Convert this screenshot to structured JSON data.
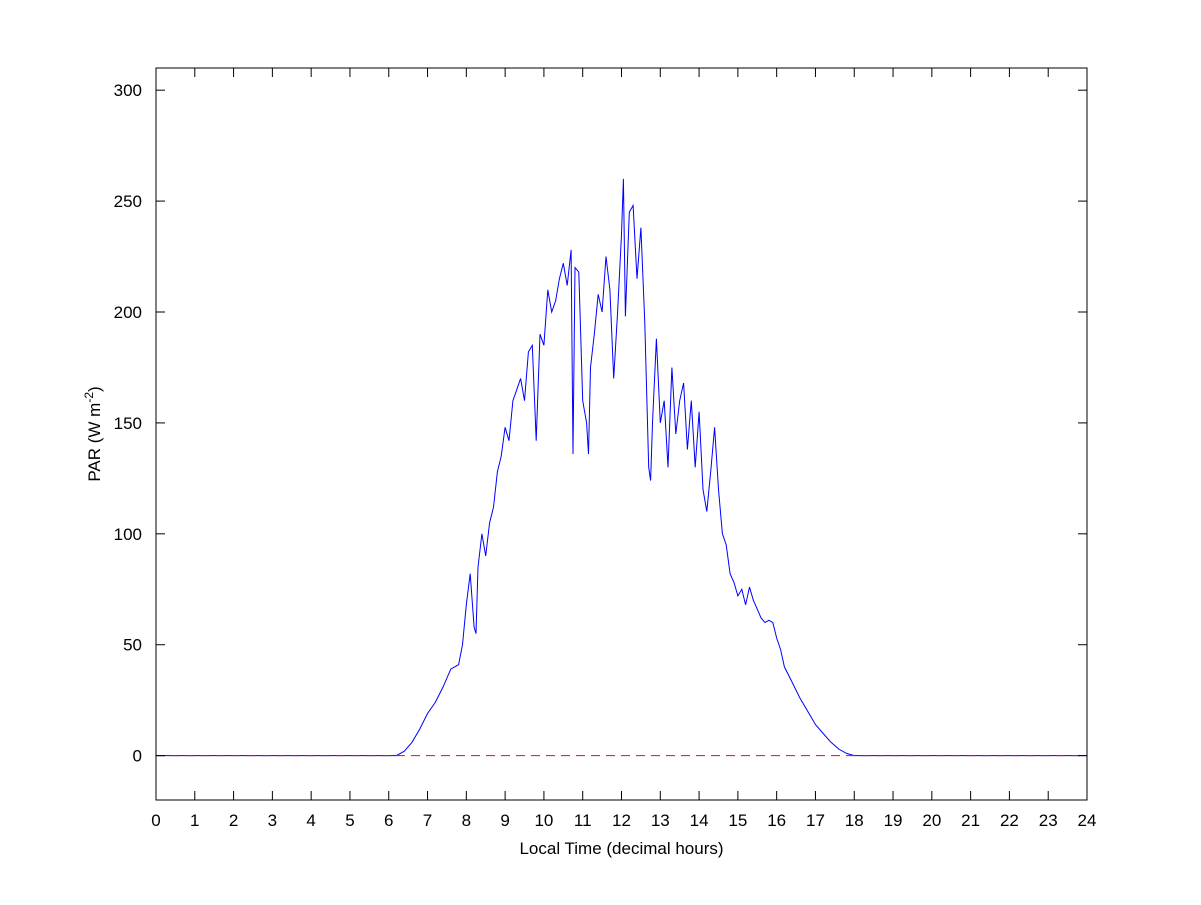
{
  "chart_data": {
    "type": "line",
    "title": "",
    "xlabel": "Local Time (decimal hours)",
    "ylabel_main": "PAR (W m",
    "ylabel_sup": "-2",
    "ylabel_close": ")",
    "xlim": [
      0,
      24
    ],
    "ylim": [
      -20,
      310
    ],
    "xticks": [
      0,
      1,
      2,
      3,
      4,
      5,
      6,
      7,
      8,
      9,
      10,
      11,
      12,
      13,
      14,
      15,
      16,
      17,
      18,
      19,
      20,
      21,
      22,
      23,
      24
    ],
    "yticks": [
      0,
      50,
      100,
      150,
      200,
      250,
      300
    ],
    "grid": false,
    "colors": {
      "series": "#0000ff",
      "reference": "#ff0000"
    },
    "series": [
      {
        "style": "solid",
        "x": [
          0,
          6.2,
          6.4,
          6.6,
          6.8,
          7.0,
          7.2,
          7.4,
          7.6,
          7.8,
          7.9,
          8.0,
          8.1,
          8.2,
          8.25,
          8.3,
          8.4,
          8.5,
          8.6,
          8.7,
          8.8,
          8.9,
          9.0,
          9.1,
          9.2,
          9.3,
          9.4,
          9.5,
          9.6,
          9.7,
          9.8,
          9.9,
          10.0,
          10.1,
          10.2,
          10.3,
          10.4,
          10.5,
          10.6,
          10.7,
          10.75,
          10.8,
          10.9,
          11.0,
          11.1,
          11.15,
          11.2,
          11.3,
          11.4,
          11.5,
          11.6,
          11.7,
          11.8,
          11.9,
          12.0,
          12.05,
          12.1,
          12.2,
          12.3,
          12.4,
          12.5,
          12.6,
          12.7,
          12.75,
          12.8,
          12.9,
          13.0,
          13.1,
          13.2,
          13.3,
          13.4,
          13.5,
          13.6,
          13.7,
          13.8,
          13.9,
          14.0,
          14.1,
          14.2,
          14.3,
          14.4,
          14.5,
          14.6,
          14.7,
          14.8,
          14.9,
          15.0,
          15.1,
          15.2,
          15.3,
          15.4,
          15.5,
          15.6,
          15.7,
          15.8,
          15.9,
          16.0,
          16.1,
          16.2,
          16.4,
          16.6,
          16.8,
          17.0,
          17.2,
          17.4,
          17.6,
          17.8,
          18.0,
          24
        ],
        "y": [
          0,
          0,
          2,
          6,
          12,
          19,
          24,
          31,
          39,
          41,
          50,
          68,
          82,
          58,
          55,
          85,
          100,
          90,
          105,
          112,
          128,
          135,
          148,
          142,
          160,
          165,
          170,
          160,
          182,
          185,
          142,
          190,
          185,
          210,
          200,
          205,
          215,
          222,
          212,
          228,
          136,
          220,
          218,
          160,
          150,
          136,
          175,
          190,
          208,
          200,
          225,
          210,
          170,
          200,
          235,
          260,
          198,
          245,
          248,
          215,
          238,
          195,
          130,
          124,
          150,
          188,
          150,
          160,
          130,
          175,
          145,
          160,
          168,
          138,
          160,
          130,
          155,
          120,
          110,
          128,
          148,
          120,
          100,
          95,
          82,
          78,
          72,
          75,
          68,
          76,
          70,
          66,
          62,
          60,
          61,
          60,
          53,
          48,
          40,
          33,
          26,
          20,
          14,
          10,
          6,
          3,
          1,
          0,
          0
        ]
      },
      {
        "style": "dashed",
        "x": [
          0,
          24
        ],
        "y": [
          0,
          0
        ]
      }
    ]
  }
}
